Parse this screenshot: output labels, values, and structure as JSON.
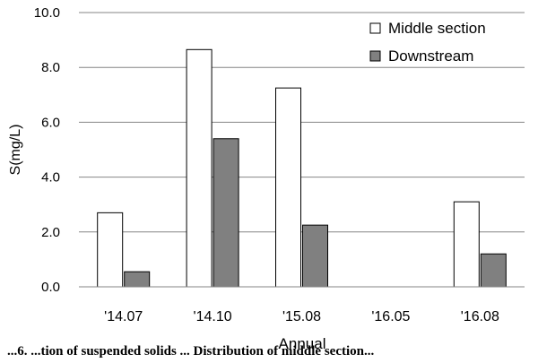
{
  "chart_data": {
    "type": "bar",
    "categories": [
      "'14.07",
      "'14.10",
      "'15.08",
      "'16.05",
      "'16.08"
    ],
    "series": [
      {
        "name": "Middle section",
        "values": [
          2.7,
          8.65,
          7.25,
          0,
          3.1
        ],
        "fill": "#ffffff"
      },
      {
        "name": "Downstream",
        "values": [
          0.55,
          5.4,
          2.25,
          0,
          1.2
        ],
        "fill": "#808080"
      }
    ],
    "xlabel": "Annual",
    "ylabel": "S(mg/L)",
    "ylim": [
      0,
      10
    ],
    "yticks": [
      "0.0",
      "2.0",
      "4.0",
      "6.0",
      "8.0",
      "10.0"
    ],
    "grid": true,
    "legend_position": "top-right"
  },
  "caption": "...6. ...tion of suspended solids ... Distribution of middle section..."
}
